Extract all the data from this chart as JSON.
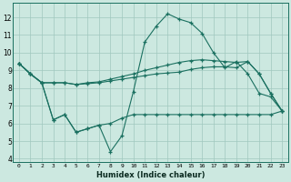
{
  "title": "",
  "xlabel": "Humidex (Indice chaleur)",
  "background_color": "#cce8e0",
  "grid_color": "#a0c8be",
  "line_color": "#1a7060",
  "xlim": [
    -0.5,
    23.5
  ],
  "ylim": [
    3.8,
    12.8
  ],
  "yticks": [
    4,
    5,
    6,
    7,
    8,
    9,
    10,
    11,
    12
  ],
  "xticks": [
    0,
    1,
    2,
    3,
    4,
    5,
    6,
    7,
    8,
    9,
    10,
    11,
    12,
    13,
    14,
    15,
    16,
    17,
    18,
    19,
    20,
    21,
    22,
    23
  ],
  "series": [
    {
      "x": [
        0,
        1,
        2,
        3,
        4,
        5,
        6,
        7,
        8,
        9,
        10,
        11,
        12,
        13,
        14,
        15,
        16,
        17,
        18,
        19,
        20,
        21,
        22,
        23
      ],
      "y": [
        9.4,
        8.8,
        8.3,
        8.3,
        8.3,
        8.2,
        8.25,
        8.3,
        8.4,
        8.5,
        8.6,
        8.7,
        8.8,
        8.85,
        8.9,
        9.05,
        9.15,
        9.2,
        9.2,
        9.15,
        9.5,
        8.8,
        7.7,
        6.7
      ]
    },
    {
      "x": [
        0,
        1,
        2,
        3,
        4,
        5,
        6,
        7,
        8,
        9,
        10,
        11,
        12,
        13,
        14,
        15,
        16,
        17,
        18,
        19,
        20,
        21,
        22,
        23
      ],
      "y": [
        9.4,
        8.8,
        8.3,
        8.3,
        8.3,
        8.2,
        8.3,
        8.35,
        8.5,
        8.65,
        8.8,
        9.0,
        9.15,
        9.3,
        9.45,
        9.55,
        9.6,
        9.55,
        9.5,
        9.45,
        9.5,
        8.8,
        7.7,
        6.7
      ]
    },
    {
      "x": [
        0,
        1,
        2,
        3,
        4,
        5,
        6,
        7,
        8,
        9,
        10,
        11,
        12,
        13,
        14,
        15,
        16,
        17,
        18,
        19,
        20,
        21,
        22,
        23
      ],
      "y": [
        9.4,
        8.8,
        8.3,
        6.2,
        6.5,
        5.5,
        5.7,
        5.9,
        6.0,
        6.3,
        6.5,
        6.5,
        6.5,
        6.5,
        6.5,
        6.5,
        6.5,
        6.5,
        6.5,
        6.5,
        6.5,
        6.5,
        6.5,
        6.7
      ]
    },
    {
      "x": [
        0,
        1,
        2,
        3,
        4,
        5,
        6,
        7,
        8,
        9,
        10,
        11,
        12,
        13,
        14,
        15,
        16,
        17,
        18,
        19,
        20,
        21,
        22,
        23
      ],
      "y": [
        9.4,
        8.8,
        8.3,
        6.2,
        6.5,
        5.5,
        5.7,
        5.9,
        4.4,
        5.3,
        7.8,
        10.6,
        11.5,
        12.2,
        11.9,
        11.7,
        11.1,
        10.0,
        9.15,
        9.5,
        8.8,
        7.7,
        7.5,
        6.7
      ]
    }
  ]
}
